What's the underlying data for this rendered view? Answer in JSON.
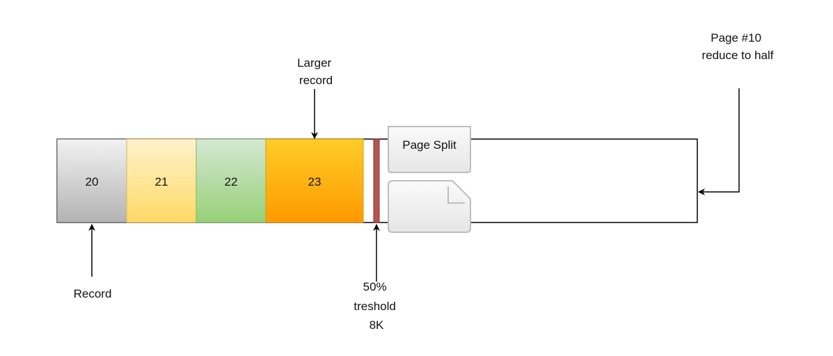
{
  "colors": {
    "record_20": "#d6d6d6",
    "record_21": "#ffe08a",
    "record_22": "#a9d28a",
    "record_23": "#ffad1a",
    "threshold_bar": "#b85450",
    "stroke": "#000000"
  },
  "records": [
    {
      "id": "record-20",
      "label": "20"
    },
    {
      "id": "record-21",
      "label": "21"
    },
    {
      "id": "record-22",
      "label": "22"
    },
    {
      "id": "record-23",
      "label": "23"
    }
  ],
  "labels": {
    "larger_record": [
      "Larger",
      "record"
    ],
    "page_number": [
      "Page #10",
      "reduce to half"
    ],
    "page_split": "Page Split",
    "record": "Record",
    "threshold": [
      "50%",
      "treshold",
      "8K"
    ]
  },
  "icons": {
    "page_split": "page-split-icon",
    "document": "document-icon"
  }
}
